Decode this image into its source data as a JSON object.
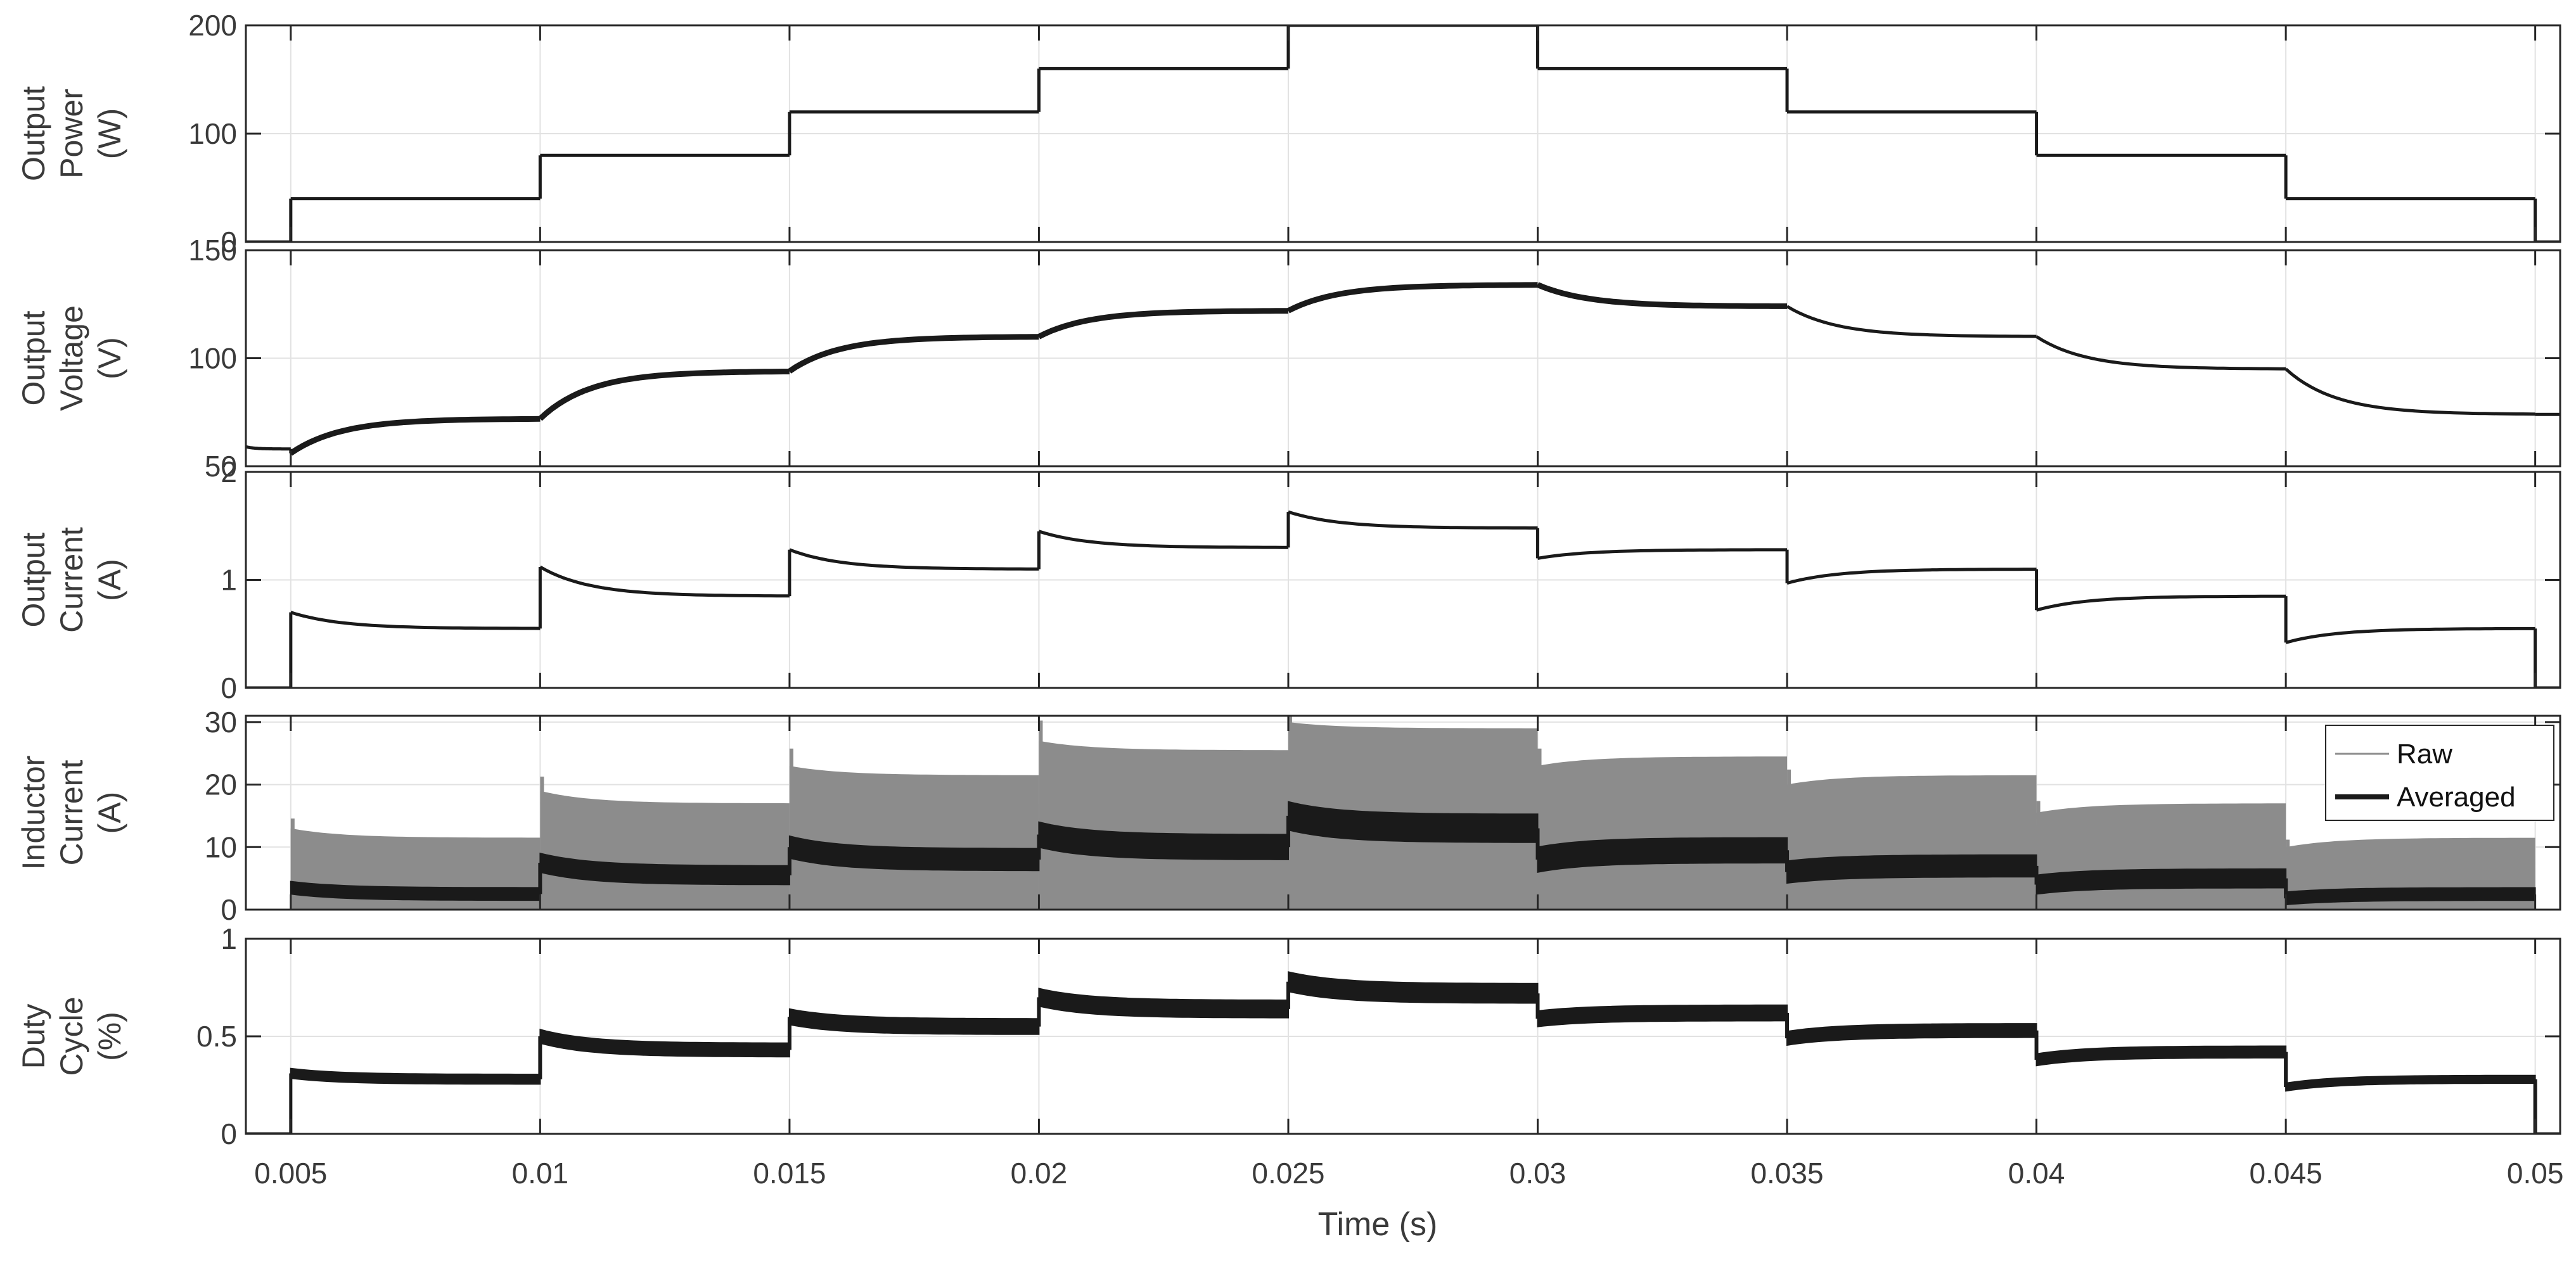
{
  "chart_data": {
    "type": "line",
    "xlabel": "Time (s)",
    "xlim": [
      0.0041,
      0.0505
    ],
    "x_ticks": [
      0.005,
      0.01,
      0.015,
      0.02,
      0.025,
      0.03,
      0.035,
      0.04,
      0.045,
      0.05
    ],
    "x_tick_labels": [
      "0.005",
      "0.01",
      "0.015",
      "0.02",
      "0.025",
      "0.03",
      "0.035",
      "0.04",
      "0.045",
      "0.05"
    ],
    "grid": true,
    "panels": [
      {
        "id": "power",
        "ylabel": [
          "Output",
          "Power",
          "(W)"
        ],
        "ylim": [
          0,
          200
        ],
        "y_ticks": [
          0,
          100,
          200
        ],
        "y_tick_labels": [
          "0",
          "100",
          "200"
        ],
        "series": [
          {
            "color": "#1a1a1a",
            "steps": [
              {
                "x0": 0.0041,
                "x1": 0.005,
                "v0": 0,
                "v1": 0
              },
              {
                "x0": 0.005,
                "x1": 0.01,
                "v0": 40,
                "v1": 40
              },
              {
                "x0": 0.01,
                "x1": 0.015,
                "v0": 80,
                "v1": 80
              },
              {
                "x0": 0.015,
                "x1": 0.02,
                "v0": 120,
                "v1": 120
              },
              {
                "x0": 0.02,
                "x1": 0.025,
                "v0": 160,
                "v1": 160
              },
              {
                "x0": 0.025,
                "x1": 0.03,
                "v0": 200,
                "v1": 200
              },
              {
                "x0": 0.03,
                "x1": 0.035,
                "v0": 160,
                "v1": 160
              },
              {
                "x0": 0.035,
                "x1": 0.04,
                "v0": 120,
                "v1": 120
              },
              {
                "x0": 0.04,
                "x1": 0.045,
                "v0": 80,
                "v1": 80
              },
              {
                "x0": 0.045,
                "x1": 0.05,
                "v0": 40,
                "v1": 40
              },
              {
                "x0": 0.05,
                "x1": 0.0505,
                "v0": 0,
                "v1": 0
              }
            ]
          }
        ]
      },
      {
        "id": "voltage",
        "ylabel": [
          "Output",
          "Voltage",
          "(V)"
        ],
        "ylim": [
          50,
          150
        ],
        "y_ticks": [
          50,
          100,
          150
        ],
        "y_tick_labels": [
          "50",
          "100",
          "150"
        ],
        "series": [
          {
            "color": "#1a1a1a",
            "steps": [
              {
                "x0": 0.0041,
                "x1": 0.005,
                "v0": 59,
                "v1": 58
              },
              {
                "x0": 0.005,
                "x1": 0.01,
                "v0": 56,
                "v1": 72
              },
              {
                "x0": 0.01,
                "x1": 0.015,
                "v0": 72,
                "v1": 94
              },
              {
                "x0": 0.015,
                "x1": 0.02,
                "v0": 94,
                "v1": 110
              },
              {
                "x0": 0.02,
                "x1": 0.025,
                "v0": 110,
                "v1": 122
              },
              {
                "x0": 0.025,
                "x1": 0.03,
                "v0": 122,
                "v1": 134
              },
              {
                "x0": 0.03,
                "x1": 0.035,
                "v0": 134,
                "v1": 124
              },
              {
                "x0": 0.035,
                "x1": 0.04,
                "v0": 124,
                "v1": 110
              },
              {
                "x0": 0.04,
                "x1": 0.045,
                "v0": 110,
                "v1": 95
              },
              {
                "x0": 0.045,
                "x1": 0.05,
                "v0": 95,
                "v1": 74
              },
              {
                "x0": 0.05,
                "x1": 0.0505,
                "v0": 74,
                "v1": 74
              }
            ]
          }
        ]
      },
      {
        "id": "current",
        "ylabel": [
          "Output",
          "Current",
          "(A)"
        ],
        "ylim": [
          0,
          2
        ],
        "y_ticks": [
          0,
          1,
          2
        ],
        "y_tick_labels": [
          "0",
          "1",
          "2"
        ],
        "series": [
          {
            "color": "#1a1a1a",
            "steps": [
              {
                "x0": 0.0041,
                "x1": 0.005,
                "v0": 0,
                "v1": 0
              },
              {
                "x0": 0.005,
                "x1": 0.01,
                "v0": 0.7,
                "v1": 0.55
              },
              {
                "x0": 0.01,
                "x1": 0.015,
                "v0": 1.12,
                "v1": 0.85
              },
              {
                "x0": 0.015,
                "x1": 0.02,
                "v0": 1.28,
                "v1": 1.1
              },
              {
                "x0": 0.02,
                "x1": 0.025,
                "v0": 1.45,
                "v1": 1.3
              },
              {
                "x0": 0.025,
                "x1": 0.03,
                "v0": 1.63,
                "v1": 1.48
              },
              {
                "x0": 0.03,
                "x1": 0.035,
                "v0": 1.2,
                "v1": 1.28
              },
              {
                "x0": 0.035,
                "x1": 0.04,
                "v0": 0.97,
                "v1": 1.1
              },
              {
                "x0": 0.04,
                "x1": 0.045,
                "v0": 0.72,
                "v1": 0.85
              },
              {
                "x0": 0.045,
                "x1": 0.05,
                "v0": 0.42,
                "v1": 0.55
              },
              {
                "x0": 0.05,
                "x1": 0.0505,
                "v0": 0,
                "v1": 0
              }
            ]
          }
        ]
      },
      {
        "id": "inductor",
        "ylabel": [
          "Inductor",
          "Current",
          "(A)"
        ],
        "ylim": [
          0,
          31
        ],
        "y_ticks": [
          0,
          10,
          20,
          30
        ],
        "y_tick_labels": [
          "0",
          "10",
          "20",
          "30"
        ],
        "legend": {
          "position": "right",
          "entries": [
            "Raw",
            "Averaged"
          ]
        },
        "series": [
          {
            "name": "Raw",
            "color": "#8c8c8c",
            "steps": [
              {
                "x0": 0.005,
                "x1": 0.01,
                "v0": 13,
                "v1": 11.5,
                "lo": 0
              },
              {
                "x0": 0.01,
                "x1": 0.015,
                "v0": 19,
                "v1": 17,
                "lo": 0
              },
              {
                "x0": 0.015,
                "x1": 0.02,
                "v0": 23,
                "v1": 21.5,
                "lo": 0
              },
              {
                "x0": 0.02,
                "x1": 0.025,
                "v0": 27,
                "v1": 25.5,
                "lo": 0
              },
              {
                "x0": 0.025,
                "x1": 0.03,
                "v0": 30,
                "v1": 29,
                "lo": 0
              },
              {
                "x0": 0.03,
                "x1": 0.035,
                "v0": 23,
                "v1": 24.5,
                "lo": 0
              },
              {
                "x0": 0.035,
                "x1": 0.04,
                "v0": 20,
                "v1": 21.5,
                "lo": 0
              },
              {
                "x0": 0.04,
                "x1": 0.045,
                "v0": 15.5,
                "v1": 17,
                "lo": 0
              },
              {
                "x0": 0.045,
                "x1": 0.05,
                "v0": 10,
                "v1": 11.5,
                "lo": 0
              }
            ]
          },
          {
            "name": "Averaged",
            "color": "#1a1a1a",
            "steps": [
              {
                "x0": 0.005,
                "x1": 0.01,
                "v0": 3.5,
                "v1": 2.5,
                "band": 2
              },
              {
                "x0": 0.01,
                "x1": 0.015,
                "v0": 7.5,
                "v1": 5.5,
                "band": 3
              },
              {
                "x0": 0.015,
                "x1": 0.02,
                "v0": 10,
                "v1": 8,
                "band": 3.5
              },
              {
                "x0": 0.02,
                "x1": 0.025,
                "v0": 12,
                "v1": 10,
                "band": 4
              },
              {
                "x0": 0.025,
                "x1": 0.03,
                "v0": 15,
                "v1": 13,
                "band": 4.5
              },
              {
                "x0": 0.03,
                "x1": 0.035,
                "v0": 8,
                "v1": 9.5,
                "band": 4
              },
              {
                "x0": 0.035,
                "x1": 0.04,
                "v0": 6,
                "v1": 7,
                "band": 3.5
              },
              {
                "x0": 0.04,
                "x1": 0.045,
                "v0": 4,
                "v1": 5,
                "band": 3
              },
              {
                "x0": 0.045,
                "x1": 0.05,
                "v0": 1.8,
                "v1": 2.5,
                "band": 2
              }
            ]
          }
        ]
      },
      {
        "id": "duty",
        "ylabel": [
          "Duty",
          "Cycle",
          "(%)"
        ],
        "ylim": [
          0,
          1
        ],
        "y_ticks": [
          0,
          0.5,
          1
        ],
        "y_tick_labels": [
          "0",
          "0.5",
          "1"
        ],
        "series": [
          {
            "color": "#1a1a1a",
            "steps": [
              {
                "x0": 0.0041,
                "x1": 0.005,
                "v0": 0,
                "v1": 0,
                "band": 0
              },
              {
                "x0": 0.005,
                "x1": 0.01,
                "v0": 0.31,
                "v1": 0.28,
                "band": 0.05
              },
              {
                "x0": 0.01,
                "x1": 0.015,
                "v0": 0.5,
                "v1": 0.43,
                "band": 0.07
              },
              {
                "x0": 0.015,
                "x1": 0.02,
                "v0": 0.6,
                "v1": 0.55,
                "band": 0.08
              },
              {
                "x0": 0.02,
                "x1": 0.025,
                "v0": 0.7,
                "v1": 0.64,
                "band": 0.09
              },
              {
                "x0": 0.025,
                "x1": 0.03,
                "v0": 0.78,
                "v1": 0.72,
                "band": 0.1
              },
              {
                "x0": 0.03,
                "x1": 0.035,
                "v0": 0.59,
                "v1": 0.62,
                "band": 0.08
              },
              {
                "x0": 0.035,
                "x1": 0.04,
                "v0": 0.49,
                "v1": 0.53,
                "band": 0.07
              },
              {
                "x0": 0.04,
                "x1": 0.045,
                "v0": 0.38,
                "v1": 0.42,
                "band": 0.06
              },
              {
                "x0": 0.045,
                "x1": 0.05,
                "v0": 0.24,
                "v1": 0.28,
                "band": 0.04
              },
              {
                "x0": 0.05,
                "x1": 0.0505,
                "v0": 0,
                "v1": 0,
                "band": 0
              }
            ]
          }
        ]
      }
    ]
  }
}
